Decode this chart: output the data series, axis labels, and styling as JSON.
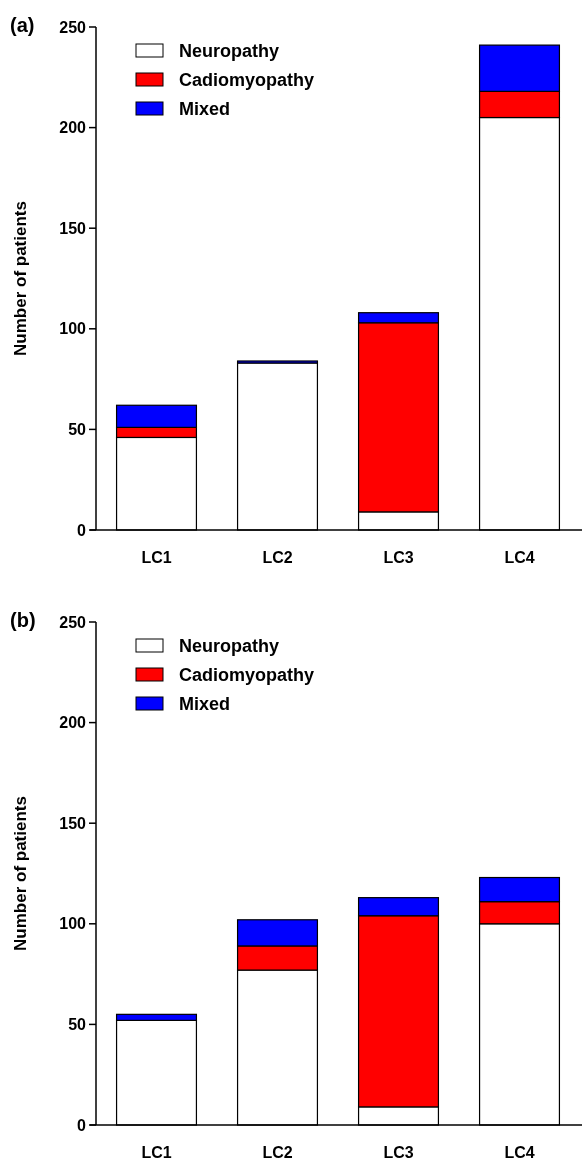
{
  "chart_data": [
    {
      "type": "bar",
      "title": "(a)",
      "ylabel": "Number of patients",
      "categories": [
        "LC1",
        "LC2",
        "LC3",
        "LC4"
      ],
      "stacked": true,
      "ylim": [
        0,
        250
      ],
      "yticks": [
        0,
        50,
        100,
        150,
        200,
        250
      ],
      "legend": "top left",
      "series": [
        {
          "name": "Neuropathy",
          "color": "#ffffff",
          "values": [
            46,
            83,
            9,
            205
          ]
        },
        {
          "name": "Cadiomyopathy",
          "color": "#ff0000",
          "values": [
            5,
            0,
            94,
            13
          ]
        },
        {
          "name": "Mixed",
          "color": "#0000ff",
          "values": [
            11,
            1,
            5,
            23
          ]
        }
      ]
    },
    {
      "type": "bar",
      "title": "(b)",
      "ylabel": "Number of patients",
      "categories": [
        "LC1",
        "LC2",
        "LC3",
        "LC4"
      ],
      "stacked": true,
      "ylim": [
        0,
        250
      ],
      "yticks": [
        0,
        50,
        100,
        150,
        200,
        250
      ],
      "legend": "top left",
      "series": [
        {
          "name": "Neuropathy",
          "color": "#ffffff",
          "values": [
            52,
            77,
            9,
            100
          ]
        },
        {
          "name": "Cadiomyopathy",
          "color": "#ff0000",
          "values": [
            0,
            12,
            95,
            11
          ]
        },
        {
          "name": "Mixed",
          "color": "#0000ff",
          "values": [
            3,
            13,
            9,
            12
          ]
        }
      ]
    }
  ]
}
